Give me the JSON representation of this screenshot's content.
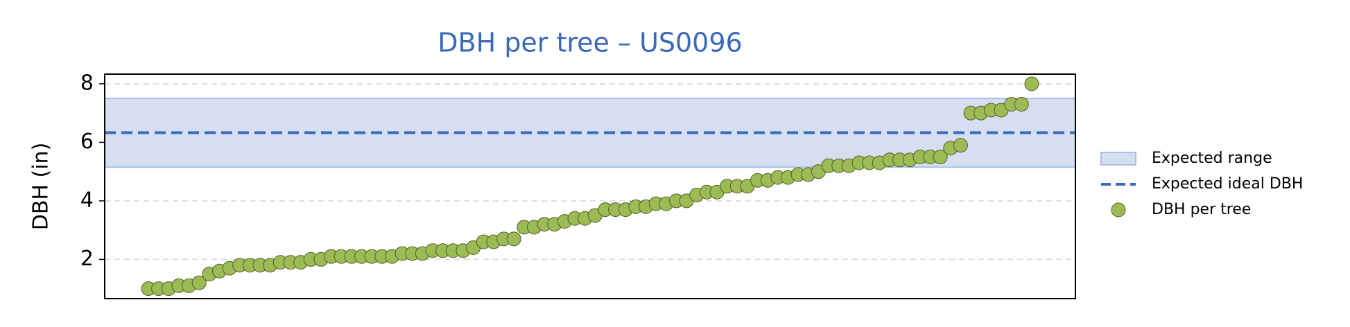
{
  "chart_data": {
    "type": "scatter",
    "title": "DBH per tree – US0096",
    "ylabel": "DBH (in)",
    "ylim": [
      0.66,
      8.33
    ],
    "yticks": [
      2,
      4,
      6,
      8
    ],
    "grid": true,
    "legend": "right",
    "band": {
      "name": "Expected range",
      "range": [
        5.15,
        7.5
      ],
      "color": "#d6dff0",
      "edge": "#a9bde6"
    },
    "reference_line": {
      "name": "Expected ideal DBH",
      "value": 6.33,
      "color": "#3b69b9"
    },
    "series": [
      {
        "name": "DBH per tree",
        "color": "#9dbb55",
        "values": [
          1.0,
          1.0,
          1.0,
          1.1,
          1.1,
          1.2,
          1.5,
          1.6,
          1.7,
          1.8,
          1.8,
          1.8,
          1.8,
          1.9,
          1.9,
          1.9,
          2.0,
          2.0,
          2.1,
          2.1,
          2.1,
          2.1,
          2.1,
          2.1,
          2.1,
          2.2,
          2.2,
          2.2,
          2.3,
          2.3,
          2.3,
          2.3,
          2.4,
          2.6,
          2.6,
          2.7,
          2.7,
          3.1,
          3.1,
          3.2,
          3.2,
          3.3,
          3.4,
          3.4,
          3.5,
          3.7,
          3.7,
          3.7,
          3.8,
          3.8,
          3.9,
          3.9,
          4.0,
          4.0,
          4.2,
          4.3,
          4.3,
          4.5,
          4.5,
          4.5,
          4.7,
          4.7,
          4.8,
          4.8,
          4.9,
          4.9,
          5.0,
          5.2,
          5.2,
          5.2,
          5.3,
          5.3,
          5.3,
          5.4,
          5.4,
          5.4,
          5.5,
          5.5,
          5.5,
          5.8,
          5.9,
          7.0,
          7.0,
          7.1,
          7.1,
          7.3,
          7.3,
          8.0
        ]
      }
    ]
  }
}
